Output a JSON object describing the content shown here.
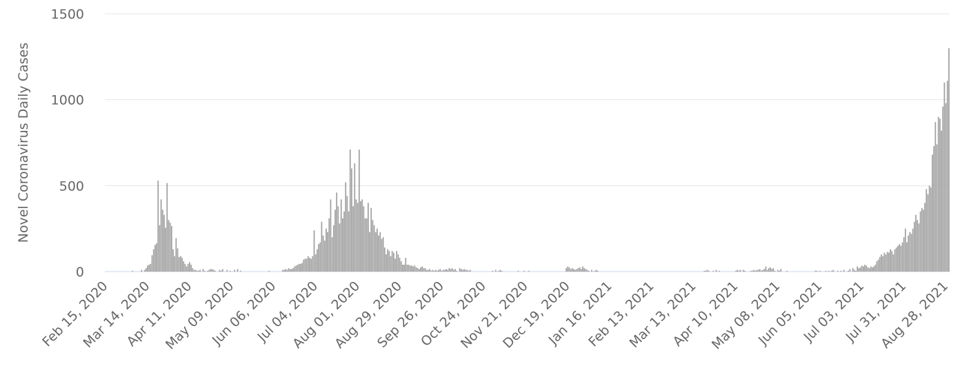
{
  "chart_data": {
    "type": "bar",
    "y_label": "Novel Coronavirus Daily Cases",
    "color": "#a0a0a0",
    "grid": true,
    "ylim": [
      0,
      1500
    ],
    "yticks": [
      0,
      500,
      1000,
      1500
    ],
    "categories": [
      "Feb 15, 2020",
      null,
      null,
      null,
      null,
      null,
      null,
      null,
      null,
      null,
      null,
      null,
      null,
      null,
      null,
      null,
      null,
      null,
      null,
      null,
      null,
      null,
      null,
      null,
      null,
      null,
      null,
      null,
      "Mar 14, 2020",
      null,
      null,
      null,
      null,
      null,
      null,
      null,
      null,
      null,
      null,
      null,
      null,
      null,
      null,
      null,
      null,
      null,
      null,
      null,
      null,
      null,
      null,
      null,
      null,
      null,
      null,
      null,
      "Apr 11, 2020",
      null,
      null,
      null,
      null,
      null,
      null,
      null,
      null,
      null,
      null,
      null,
      null,
      null,
      null,
      null,
      null,
      null,
      null,
      null,
      null,
      null,
      null,
      null,
      null,
      null,
      null,
      null,
      "May 09, 2020",
      null,
      null,
      null,
      null,
      null,
      null,
      null,
      null,
      null,
      null,
      null,
      null,
      null,
      null,
      null,
      null,
      null,
      null,
      null,
      null,
      null,
      null,
      null,
      null,
      null,
      null,
      null,
      "Jun 06, 2020",
      null,
      null,
      null,
      null,
      null,
      null,
      null,
      null,
      null,
      null,
      null,
      null,
      null,
      null,
      null,
      null,
      null,
      null,
      null,
      null,
      null,
      null,
      null,
      null,
      null,
      null,
      null,
      "Jul 04, 2020",
      null,
      null,
      null,
      null,
      null,
      null,
      null,
      null,
      null,
      null,
      null,
      null,
      null,
      null,
      null,
      null,
      null,
      null,
      null,
      null,
      null,
      null,
      null,
      null,
      null,
      null,
      null,
      "Aug 01, 2020",
      null,
      null,
      null,
      null,
      null,
      null,
      null,
      null,
      null,
      null,
      null,
      null,
      null,
      null,
      null,
      null,
      null,
      null,
      null,
      null,
      null,
      null,
      null,
      null,
      null,
      null,
      null,
      "Aug 29, 2020",
      null,
      null,
      null,
      null,
      null,
      null,
      null,
      null,
      null,
      null,
      null,
      null,
      null,
      null,
      null,
      null,
      null,
      null,
      null,
      null,
      null,
      null,
      null,
      null,
      null,
      null,
      null,
      "Sep 26, 2020",
      null,
      null,
      null,
      null,
      null,
      null,
      null,
      null,
      null,
      null,
      null,
      null,
      null,
      null,
      null,
      null,
      null,
      null,
      null,
      null,
      null,
      null,
      null,
      null,
      null,
      null,
      null,
      "Oct 24, 2020",
      null,
      null,
      null,
      null,
      null,
      null,
      null,
      null,
      null,
      null,
      null,
      null,
      null,
      null,
      null,
      null,
      null,
      null,
      null,
      null,
      null,
      null,
      null,
      null,
      null,
      null,
      null,
      "Nov 21, 2020",
      null,
      null,
      null,
      null,
      null,
      null,
      null,
      null,
      null,
      null,
      null,
      null,
      null,
      null,
      null,
      null,
      null,
      null,
      null,
      null,
      null,
      null,
      null,
      null,
      null,
      null,
      null,
      "Dec 19, 2020",
      null,
      null,
      null,
      null,
      null,
      null,
      null,
      null,
      null,
      null,
      null,
      null,
      null,
      null,
      null,
      null,
      null,
      null,
      null,
      null,
      null,
      null,
      null,
      null,
      null,
      null,
      null,
      "Jan 16, 2021",
      null,
      null,
      null,
      null,
      null,
      null,
      null,
      null,
      null,
      null,
      null,
      null,
      null,
      null,
      null,
      null,
      null,
      null,
      null,
      null,
      null,
      null,
      null,
      null,
      null,
      null,
      null,
      "Feb 13, 2021",
      null,
      null,
      null,
      null,
      null,
      null,
      null,
      null,
      null,
      null,
      null,
      null,
      null,
      null,
      null,
      null,
      null,
      null,
      null,
      null,
      null,
      null,
      null,
      null,
      null,
      null,
      null,
      "Mar 13, 2021",
      null,
      null,
      null,
      null,
      null,
      null,
      null,
      null,
      null,
      null,
      null,
      null,
      null,
      null,
      null,
      null,
      null,
      null,
      null,
      null,
      null,
      null,
      null,
      null,
      null,
      null,
      null,
      "Apr 10, 2021",
      null,
      null,
      null,
      null,
      null,
      null,
      null,
      null,
      null,
      null,
      null,
      null,
      null,
      null,
      null,
      null,
      null,
      null,
      null,
      null,
      null,
      null,
      null,
      null,
      null,
      null,
      null,
      "May 08, 2021",
      null,
      null,
      null,
      null,
      null,
      null,
      null,
      null,
      null,
      null,
      null,
      null,
      null,
      null,
      null,
      null,
      null,
      null,
      null,
      null,
      null,
      null,
      null,
      null,
      null,
      null,
      null,
      "Jun 05, 2021",
      null,
      null,
      null,
      null,
      null,
      null,
      null,
      null,
      null,
      null,
      null,
      null,
      null,
      null,
      null,
      null,
      null,
      null,
      null,
      null,
      null,
      null,
      null,
      null,
      null,
      null,
      null,
      "Jul 03, 2021",
      null,
      null,
      null,
      null,
      null,
      null,
      null,
      null,
      null,
      null,
      null,
      null,
      null,
      null,
      null,
      null,
      null,
      null,
      null,
      null,
      null,
      null,
      null,
      null,
      null,
      null,
      null,
      "Jul 31, 2021",
      null,
      null,
      null,
      null,
      null,
      null,
      null,
      null,
      null,
      null,
      null,
      null,
      null,
      null,
      null,
      null,
      null,
      null,
      null,
      null,
      null,
      null,
      null,
      null,
      null,
      null,
      null,
      "Aug 28, 2021",
      null,
      null
    ],
    "values": [
      0,
      0,
      0,
      0,
      0,
      0,
      0,
      0,
      0,
      0,
      0,
      0,
      0,
      0,
      0,
      0,
      0,
      0,
      5,
      0,
      0,
      0,
      0,
      0,
      10,
      0,
      10,
      20,
      35,
      40,
      45,
      95,
      130,
      155,
      165,
      530,
      270,
      420,
      360,
      330,
      255,
      515,
      300,
      285,
      265,
      130,
      90,
      195,
      135,
      85,
      90,
      80,
      60,
      45,
      30,
      45,
      55,
      40,
      20,
      10,
      10,
      5,
      5,
      10,
      0,
      15,
      5,
      0,
      5,
      10,
      15,
      15,
      10,
      5,
      0,
      0,
      10,
      5,
      15,
      0,
      0,
      10,
      0,
      5,
      0,
      0,
      10,
      0,
      15,
      0,
      5,
      0,
      0,
      0,
      0,
      0,
      0,
      0,
      0,
      0,
      0,
      0,
      0,
      0,
      0,
      0,
      0,
      0,
      0,
      5,
      0,
      0,
      0,
      0,
      0,
      0,
      0,
      0,
      10,
      10,
      15,
      10,
      20,
      15,
      15,
      20,
      30,
      35,
      40,
      45,
      45,
      50,
      70,
      75,
      75,
      90,
      80,
      75,
      90,
      240,
      100,
      130,
      160,
      170,
      290,
      210,
      180,
      250,
      230,
      310,
      420,
      200,
      270,
      360,
      460,
      380,
      280,
      420,
      310,
      350,
      520,
      440,
      350,
      710,
      600,
      380,
      630,
      420,
      400,
      710,
      410,
      420,
      380,
      310,
      310,
      400,
      230,
      370,
      300,
      270,
      230,
      250,
      210,
      230,
      190,
      200,
      140,
      100,
      130,
      120,
      90,
      120,
      110,
      75,
      120,
      100,
      80,
      60,
      40,
      40,
      80,
      40,
      40,
      35,
      35,
      30,
      35,
      25,
      20,
      15,
      25,
      30,
      20,
      20,
      10,
      10,
      15,
      5,
      10,
      5,
      10,
      5,
      10,
      15,
      5,
      10,
      10,
      15,
      10,
      20,
      15,
      20,
      10,
      15,
      5,
      0,
      20,
      15,
      10,
      15,
      10,
      10,
      5,
      10,
      0,
      0,
      0,
      0,
      0,
      0,
      0,
      0,
      0,
      0,
      0,
      0,
      0,
      0,
      5,
      0,
      10,
      0,
      5,
      10,
      5,
      0,
      0,
      0,
      0,
      0,
      0,
      0,
      0,
      0,
      0,
      5,
      0,
      0,
      0,
      5,
      0,
      0,
      5,
      0,
      0,
      0,
      0,
      0,
      0,
      0,
      0,
      0,
      0,
      0,
      0,
      0,
      0,
      0,
      0,
      0,
      0,
      0,
      0,
      0,
      0,
      0,
      0,
      20,
      30,
      25,
      15,
      20,
      15,
      10,
      15,
      20,
      25,
      15,
      30,
      20,
      15,
      10,
      5,
      0,
      10,
      0,
      5,
      10,
      5,
      0,
      0,
      0,
      0,
      0,
      0,
      0,
      0,
      0,
      0,
      0,
      0,
      0,
      0,
      0,
      0,
      0,
      0,
      0,
      0,
      0,
      0,
      0,
      0,
      0,
      0,
      0,
      0,
      0,
      0,
      0,
      0,
      0,
      0,
      0,
      0,
      0,
      0,
      0,
      0,
      0,
      0,
      0,
      0,
      0,
      0,
      0,
      0,
      0,
      0,
      0,
      0,
      0,
      0,
      0,
      0,
      0,
      0,
      0,
      0,
      0,
      0,
      0,
      0,
      0,
      0,
      0,
      0,
      0,
      0,
      5,
      5,
      10,
      5,
      0,
      0,
      5,
      0,
      10,
      0,
      5,
      0,
      0,
      0,
      0,
      0,
      0,
      0,
      0,
      0,
      0,
      5,
      10,
      5,
      10,
      0,
      10,
      5,
      0,
      0,
      0,
      5,
      5,
      10,
      5,
      10,
      10,
      15,
      5,
      10,
      15,
      30,
      10,
      20,
      25,
      15,
      20,
      5,
      0,
      10,
      5,
      15,
      0,
      0,
      0,
      5,
      0,
      0,
      0,
      0,
      0,
      0,
      0,
      0,
      0,
      0,
      0,
      0,
      0,
      0,
      0,
      0,
      0,
      0,
      5,
      5,
      0,
      5,
      0,
      0,
      0,
      5,
      0,
      5,
      0,
      5,
      10,
      0,
      0,
      5,
      0,
      5,
      0,
      10,
      0,
      0,
      5,
      15,
      0,
      20,
      10,
      5,
      30,
      20,
      25,
      35,
      30,
      40,
      35,
      25,
      20,
      30,
      25,
      30,
      40,
      60,
      70,
      85,
      100,
      90,
      110,
      100,
      115,
      110,
      130,
      120,
      100,
      130,
      140,
      150,
      160,
      150,
      170,
      200,
      250,
      170,
      210,
      230,
      220,
      250,
      290,
      330,
      300,
      280,
      350,
      370,
      360,
      400,
      480,
      450,
      500,
      490,
      680,
      730,
      870,
      740,
      900,
      890,
      820,
      960,
      1100,
      980,
      1110,
      1300
    ]
  }
}
